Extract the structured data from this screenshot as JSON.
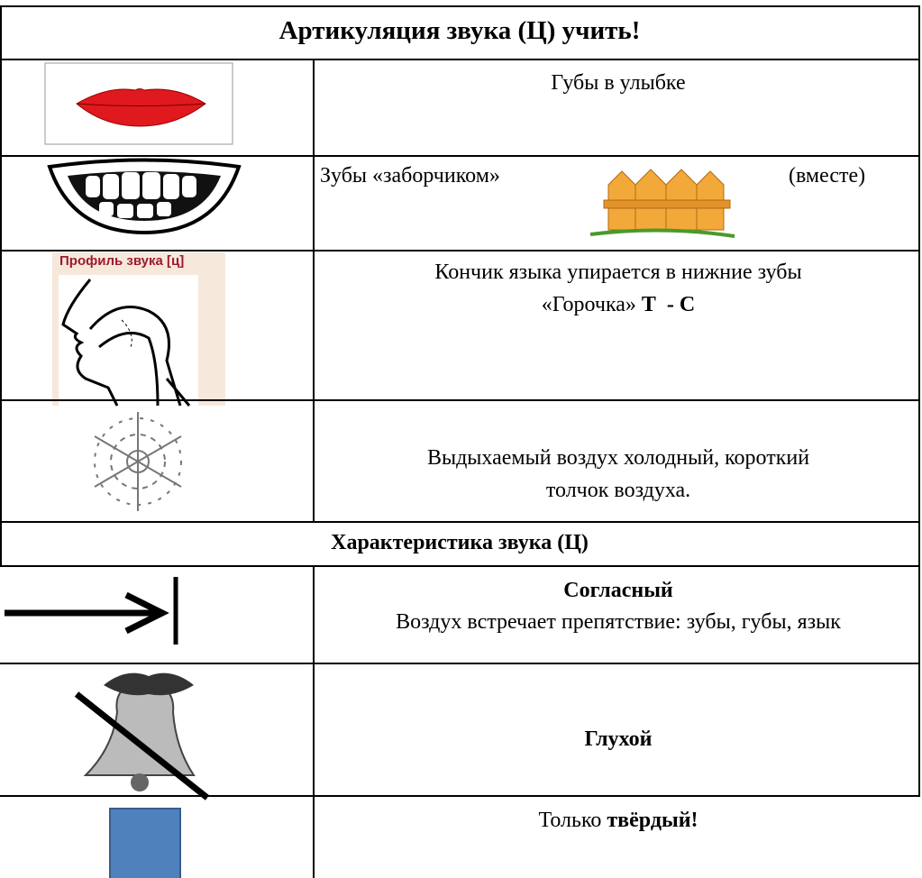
{
  "title": "Артикуляция звука (Ц) учить!",
  "articulation": [
    {
      "text": [
        "Губы в улыбке"
      ]
    },
    {
      "text": [
        "Зубы «заборчиком»"
      ],
      "note": "(вместе)"
    },
    {
      "image_label": "Профиль звука [ц]",
      "text": [
        "Кончик языка упирается в нижние зубы"
      ],
      "extra": {
        "plain": "«Горочка»",
        "bold": "Т  - С"
      }
    },
    {
      "text": [
        "Выдыхаемый воздух холодный, короткий",
        "толчок воздуха."
      ]
    }
  ],
  "section_title": "Характеристика звука (Ц)",
  "characteristics": [
    {
      "bold": "Согласный",
      "text": "Воздух встречает препятствие: зубы, губы, язык"
    },
    {
      "bold": "Глухой"
    },
    {
      "plain": "Только",
      "bold": "твёрдый!"
    }
  ]
}
